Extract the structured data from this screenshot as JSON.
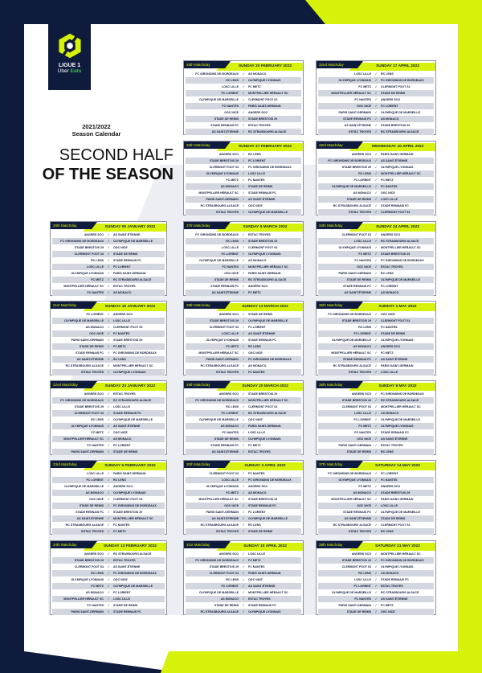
{
  "colors": {
    "navy": "#0f1b3d",
    "lime": "#d7f20a"
  },
  "logo": {
    "line1": "LIGUE 1",
    "line2a": "Uber",
    "line2b": "Eats"
  },
  "season": {
    "years": "2021/2022",
    "label": "Season Calendar"
  },
  "title": {
    "line1": "SECOND HALF",
    "line2": "OF THE SEASON"
  },
  "separator": "/",
  "matchdays": [
    {
      "label": "20th Matchday",
      "date": "SUNDAY 09 JANUARY 2022",
      "matches": [
        [
          "ANGERS SCO",
          "AS SAINT-ÉTIENNE"
        ],
        [
          "FC GIRONDINS DE BORDEAUX",
          "OLYMPIQUE DE MARSEILLE"
        ],
        [
          "STADE BRESTOIS 29",
          "OGC NICE"
        ],
        [
          "CLERMONT FOOT 63",
          "STADE DE REIMS"
        ],
        [
          "RC LENS",
          "STADE RENNAIS FC"
        ],
        [
          "LOSC LILLE",
          "FC LORIENT"
        ],
        [
          "OLYMPIQUE LYONNAIS",
          "PARIS SAINT-GERMAIN"
        ],
        [
          "FC METZ",
          "RC STRASBOURG ALSACE"
        ],
        [
          "MONTPELLIER HÉRAULT SC",
          "ESTAC TROYES"
        ],
        [
          "FC NANTES",
          "AS MONACO"
        ]
      ]
    },
    {
      "label": "21st Matchday",
      "date": "SUNDAY 16 JANUARY 2022",
      "matches": [
        [
          "FC LORIENT",
          "ANGERS SCO"
        ],
        [
          "OLYMPIQUE DE MARSEILLE",
          "LOSC LILLE"
        ],
        [
          "AS MONACO",
          "CLERMONT FOOT 63"
        ],
        [
          "OGC NICE",
          "FC NANTES"
        ],
        [
          "PARIS SAINT-GERMAIN",
          "STADE BRESTOIS 29"
        ],
        [
          "STADE DE REIMS",
          "FC METZ"
        ],
        [
          "STADE RENNAIS FC",
          "FC GIRONDINS DE BORDEAUX"
        ],
        [
          "AS SAINT-ÉTIENNE",
          "RC LENS"
        ],
        [
          "RC STRASBOURG ALSACE",
          "MONTPELLIER HÉRAULT SC"
        ],
        [
          "ESTAC TROYES",
          "OLYMPIQUE LYONNAIS"
        ]
      ]
    },
    {
      "label": "22nd Matchday",
      "date": "SUNDAY 23 JANUARY 2022",
      "matches": [
        [
          "ANGERS SCO",
          "ESTAC TROYES"
        ],
        [
          "FC GIRONDINS DE BORDEAUX",
          "RC STRASBOURG ALSACE"
        ],
        [
          "STADE BRESTOIS 29",
          "LOSC LILLE"
        ],
        [
          "CLERMONT FOOT 63",
          "STADE RENNAIS FC"
        ],
        [
          "RC LENS",
          "OLYMPIQUE DE MARSEILLE"
        ],
        [
          "OLYMPIQUE LYONNAIS",
          "AS SAINT-ÉTIENNE"
        ],
        [
          "FC METZ",
          "OGC NICE"
        ],
        [
          "MONTPELLIER HÉRAULT SC",
          "AS MONACO"
        ],
        [
          "FC NANTES",
          "FC LORIENT"
        ],
        [
          "PARIS SAINT-GERMAIN",
          "STADE DE REIMS"
        ]
      ]
    },
    {
      "label": "23rd Matchday",
      "date": "SUNDAY 6 FEBRUARY 2022",
      "matches": [
        [
          "LOSC LILLE",
          "PARIS SAINT-GERMAIN"
        ],
        [
          "FC LORIENT",
          "RC LENS"
        ],
        [
          "OLYMPIQUE DE MARSEILLE",
          "ANGERS SCO"
        ],
        [
          "AS MONACO",
          "OLYMPIQUE LYONNAIS"
        ],
        [
          "OGC NICE",
          "CLERMONT FOOT 63"
        ],
        [
          "STADE DE REIMS",
          "FC GIRONDINS DE BORDEAUX"
        ],
        [
          "STADE RENNAIS FC",
          "STADE BRESTOIS 29"
        ],
        [
          "AS SAINT-ÉTIENNE",
          "MONTPELLIER HÉRAULT SC"
        ],
        [
          "RC STRASBOURG ALSACE",
          "FC NANTES"
        ],
        [
          "ESTAC TROYES",
          "FC METZ"
        ]
      ]
    },
    {
      "label": "24th Matchday",
      "date": "SUNDAY 13 FEBRUARY 2022",
      "matches": [
        [
          "ANGERS SCO",
          "RC STRASBOURG ALSACE"
        ],
        [
          "STADE BRESTOIS 29",
          "ESTAC TROYES"
        ],
        [
          "CLERMONT FOOT 63",
          "AS SAINT-ÉTIENNE"
        ],
        [
          "RC LENS",
          "FC GIRONDINS DE BORDEAUX"
        ],
        [
          "OLYMPIQUE LYONNAIS",
          "OGC NICE"
        ],
        [
          "FC METZ",
          "OLYMPIQUE DE MARSEILLE"
        ],
        [
          "AS MONACO",
          "FC LORIENT"
        ],
        [
          "MONTPELLIER HÉRAULT SC",
          "LOSC LILLE"
        ],
        [
          "FC NANTES",
          "STADE DE REIMS"
        ],
        [
          "PARIS SAINT-GERMAIN",
          "STADE RENNAIS FC"
        ]
      ]
    },
    {
      "label": "25th Matchday",
      "date": "SUNDAY 20 FEBRUARY 2022",
      "matches": [
        [
          "FC GIRONDINS DE BORDEAUX",
          "AS MONACO"
        ],
        [
          "RC LENS",
          "OLYMPIQUE LYONNAIS"
        ],
        [
          "LOSC LILLE",
          "FC METZ"
        ],
        [
          "FC LORIENT",
          "MONTPELLIER HÉRAULT SC"
        ],
        [
          "OLYMPIQUE DE MARSEILLE",
          "CLERMONT FOOT 63"
        ],
        [
          "FC NANTES",
          "PARIS SAINT-GERMAIN"
        ],
        [
          "OGC NICE",
          "ANGERS SCO"
        ],
        [
          "STADE DE REIMS",
          "STADE BRESTOIS 29"
        ],
        [
          "STADE RENNAIS FC",
          "ESTAC TROYES"
        ],
        [
          "AS SAINT-ÉTIENNE",
          "RC STRASBOURG ALSACE"
        ]
      ]
    },
    {
      "label": "26th Matchday",
      "date": "SUNDAY 27 FEBRUARY 2022",
      "matches": [
        [
          "ANGERS SCO",
          "RC LENS"
        ],
        [
          "STADE BRESTOIS 29",
          "FC LORIENT"
        ],
        [
          "CLERMONT FOOT 63",
          "FC GIRONDINS DE BORDEAUX"
        ],
        [
          "OLYMPIQUE LYONNAIS",
          "LOSC LILLE"
        ],
        [
          "FC METZ",
          "FC NANTES"
        ],
        [
          "AS MONACO",
          "STADE DE REIMS"
        ],
        [
          "MONTPELLIER HÉRAULT SC",
          "STADE RENNAIS FC"
        ],
        [
          "PARIS SAINT-GERMAIN",
          "AS SAINT-ÉTIENNE"
        ],
        [
          "RC STRASBOURG ALSACE",
          "OGC NICE"
        ],
        [
          "ESTAC TROYES",
          "OLYMPIQUE DE MARSEILLE"
        ]
      ]
    },
    {
      "label": "27th Matchday",
      "date": "SUNDAY 6 MARCH 2022",
      "matches": [
        [
          "FC GIRONDINS DE BORDEAUX",
          "ESTAC TROYES"
        ],
        [
          "RC LENS",
          "STADE BRESTOIS 29"
        ],
        [
          "LOSC LILLE",
          "CLERMONT FOOT 63"
        ],
        [
          "FC LORIENT",
          "OLYMPIQUE LYONNAIS"
        ],
        [
          "OLYMPIQUE DE MARSEILLE",
          "AS MONACO"
        ],
        [
          "FC NANTES",
          "MONTPELLIER HÉRAULT SC"
        ],
        [
          "OGC NICE",
          "PARIS SAINT-GERMAIN"
        ],
        [
          "STADE DE REIMS",
          "RC STRASBOURG ALSACE"
        ],
        [
          "STADE RENNAIS FC",
          "ANGERS SCO"
        ],
        [
          "AS SAINT-ÉTIENNE",
          "FC METZ"
        ]
      ]
    },
    {
      "label": "28th Matchday",
      "date": "SUNDAY 13 MARCH 2022",
      "matches": [
        [
          "ANGERS SCO",
          "STADE DE REIMS"
        ],
        [
          "STADE BRESTOIS 29",
          "OLYMPIQUE DE MARSEILLE"
        ],
        [
          "CLERMONT FOOT 63",
          "FC LORIENT"
        ],
        [
          "LOSC LILLE",
          "AS SAINT-ÉTIENNE"
        ],
        [
          "OLYMPIQUE LYONNAIS",
          "STADE RENNAIS FC"
        ],
        [
          "FC METZ",
          "RC LENS"
        ],
        [
          "MONTPELLIER HÉRAULT SC",
          "OGC NICE"
        ],
        [
          "PARIS SAINT-GERMAIN",
          "FC GIRONDINS DE BORDEAUX"
        ],
        [
          "RC STRASBOURG ALSACE",
          "AS MONACO"
        ],
        [
          "ESTAC TROYES",
          "FC NANTES"
        ]
      ]
    },
    {
      "label": "29th Matchday",
      "date": "SUNDAY 20 MARCH 2022",
      "matches": [
        [
          "ANGERS SCO",
          "STADE BRESTOIS 29"
        ],
        [
          "FC GIRONDINS DE BORDEAUX",
          "MONTPELLIER HÉRAULT SC"
        ],
        [
          "RC LENS",
          "CLERMONT FOOT 63"
        ],
        [
          "FC LORIENT",
          "RC STRASBOURG ALSACE"
        ],
        [
          "OLYMPIQUE DE MARSEILLE",
          "OGC NICE"
        ],
        [
          "AS MONACO",
          "PARIS SAINT-GERMAIN"
        ],
        [
          "FC NANTES",
          "LOSC LILLE"
        ],
        [
          "STADE DE REIMS",
          "OLYMPIQUE LYONNAIS"
        ],
        [
          "STADE RENNAIS FC",
          "FC METZ"
        ],
        [
          "AS SAINT-ÉTIENNE",
          "ESTAC TROYES"
        ]
      ]
    },
    {
      "label": "30th Matchday",
      "date": "SUNDAY 3 APRIL 2022",
      "matches": [
        [
          "CLERMONT FOOT 63",
          "FC NANTES"
        ],
        [
          "LOSC LILLE",
          "FC GIRONDINS DE BORDEAUX"
        ],
        [
          "OLYMPIQUE LYONNAIS",
          "ANGERS SCO"
        ],
        [
          "FC METZ",
          "AS MONACO"
        ],
        [
          "MONTPELLIER HÉRAULT SC",
          "STADE BRESTOIS 29"
        ],
        [
          "OGC NICE",
          "STADE RENNAIS FC"
        ],
        [
          "PARIS SAINT-GERMAIN",
          "FC LORIENT"
        ],
        [
          "AS SAINT-ÉTIENNE",
          "OLYMPIQUE DE MARSEILLE"
        ],
        [
          "RC STRASBOURG ALSACE",
          "RC LENS"
        ],
        [
          "ESTAC TROYES",
          "STADE DE REIMS"
        ]
      ]
    },
    {
      "label": "31st Matchday",
      "date": "SUNDAY 10 APRIL 2022",
      "matches": [
        [
          "ANGERS SCO",
          "LOSC LILLE"
        ],
        [
          "FC GIRONDINS DE BORDEAUX",
          "FC METZ"
        ],
        [
          "STADE BRESTOIS 29",
          "FC NANTES"
        ],
        [
          "CLERMONT FOOT 63",
          "PARIS SAINT-GERMAIN"
        ],
        [
          "RC LENS",
          "OGC NICE"
        ],
        [
          "FC LORIENT",
          "AS SAINT-ÉTIENNE"
        ],
        [
          "OLYMPIQUE DE MARSEILLE",
          "MONTPELLIER HÉRAULT SC"
        ],
        [
          "AS MONACO",
          "ESTAC TROYES"
        ],
        [
          "STADE DE REIMS",
          "STADE RENNAIS FC"
        ],
        [
          "RC STRASBOURG ALSACE",
          "OLYMPIQUE LYONNAIS"
        ]
      ]
    },
    {
      "label": "32nd Matchday",
      "date": "SUNDAY 17 APRIL 2022",
      "matches": [
        [
          "LOSC LILLE",
          "RC LENS"
        ],
        [
          "OLYMPIQUE LYONNAIS",
          "FC GIRONDINS DE BORDEAUX"
        ],
        [
          "FC METZ",
          "CLERMONT FOOT 63"
        ],
        [
          "MONTPELLIER HÉRAULT SC",
          "STADE DE REIMS"
        ],
        [
          "FC NANTES",
          "ANGERS SCO"
        ],
        [
          "OGC NICE",
          "FC LORIENT"
        ],
        [
          "PARIS SAINT-GERMAIN",
          "OLYMPIQUE DE MARSEILLE"
        ],
        [
          "STADE RENNAIS FC",
          "AS MONACO"
        ],
        [
          "AS SAINT-ÉTIENNE",
          "STADE BRESTOIS 29"
        ],
        [
          "ESTAC TROYES",
          "RC STRASBOURG ALSACE"
        ]
      ]
    },
    {
      "label": "33rd Matchday",
      "date": "WEDNESDAY 20 APRIL 2022",
      "matches": [
        [
          "ANGERS SCO",
          "PARIS SAINT-GERMAIN"
        ],
        [
          "FC GIRONDINS DE BORDEAUX",
          "AS SAINT-ÉTIENNE"
        ],
        [
          "STADE BRESTOIS 29",
          "OLYMPIQUE LYONNAIS"
        ],
        [
          "RC LENS",
          "MONTPELLIER HÉRAULT SC"
        ],
        [
          "FC LORIENT",
          "FC METZ"
        ],
        [
          "OLYMPIQUE DE MARSEILLE",
          "FC NANTES"
        ],
        [
          "AS MONACO",
          "OGC NICE"
        ],
        [
          "STADE DE REIMS",
          "LOSC LILLE"
        ],
        [
          "RC STRASBOURG ALSACE",
          "STADE RENNAIS FC"
        ],
        [
          "ESTAC TROYES",
          "CLERMONT FOOT 63"
        ]
      ]
    },
    {
      "label": "34th Matchday",
      "date": "SUNDAY 24 APRIL 2022",
      "matches": [
        [
          "CLERMONT FOOT 63",
          "ANGERS SCO"
        ],
        [
          "LOSC LILLE",
          "RC STRASBOURG ALSACE"
        ],
        [
          "OLYMPIQUE LYONNAIS",
          "MONTPELLIER HÉRAULT SC"
        ],
        [
          "FC METZ",
          "STADE BRESTOIS 29"
        ],
        [
          "FC NANTES",
          "FC GIRONDINS DE BORDEAUX"
        ],
        [
          "OGC NICE",
          "ESTAC TROYES"
        ],
        [
          "PARIS SAINT-GERMAIN",
          "RC LENS"
        ],
        [
          "STADE DE REIMS",
          "OLYMPIQUE DE MARSEILLE"
        ],
        [
          "STADE RENNAIS FC",
          "FC LORIENT"
        ],
        [
          "AS SAINT-ÉTIENNE",
          "AS MONACO"
        ]
      ]
    },
    {
      "label": "35th Matchday",
      "date": "SUNDAY 1 MAY 2022",
      "matches": [
        [
          "FC GIRONDINS DE BORDEAUX",
          "OGC NICE"
        ],
        [
          "STADE BRESTOIS 29",
          "CLERMONT FOOT 63"
        ],
        [
          "RC LENS",
          "FC NANTES"
        ],
        [
          "FC LORIENT",
          "STADE DE REIMS"
        ],
        [
          "OLYMPIQUE DE MARSEILLE",
          "OLYMPIQUE LYONNAIS"
        ],
        [
          "AS MONACO",
          "ANGERS SCO"
        ],
        [
          "MONTPELLIER HÉRAULT SC",
          "FC METZ"
        ],
        [
          "STADE RENNAIS FC",
          "AS SAINT-ÉTIENNE"
        ],
        [
          "RC STRASBOURG ALSACE",
          "PARIS SAINT-GERMAIN"
        ],
        [
          "ESTAC TROYES",
          "LOSC LILLE"
        ]
      ]
    },
    {
      "label": "36th Matchday",
      "date": "SUNDAY 8 MAY 2022",
      "matches": [
        [
          "ANGERS SCO",
          "FC GIRONDINS DE BORDEAUX"
        ],
        [
          "STADE BRESTOIS 29",
          "RC STRASBOURG ALSACE"
        ],
        [
          "CLERMONT FOOT 63",
          "MONTPELLIER HÉRAULT SC"
        ],
        [
          "LOSC LILLE",
          "AS MONACO"
        ],
        [
          "FC LORIENT",
          "OLYMPIQUE DE MARSEILLE"
        ],
        [
          "FC METZ",
          "OLYMPIQUE LYONNAIS"
        ],
        [
          "FC NANTES",
          "STADE RENNAIS FC"
        ],
        [
          "OGC NICE",
          "AS SAINT-ÉTIENNE"
        ],
        [
          "PARIS SAINT-GERMAIN",
          "ESTAC TROYES"
        ],
        [
          "STADE DE REIMS",
          "RC LENS"
        ]
      ]
    },
    {
      "label": "37th Matchday",
      "date": "SATURDAY 14 MAY 2022",
      "matches": [
        [
          "FC GIRONDINS DE BORDEAUX",
          "FC LORIENT"
        ],
        [
          "OLYMPIQUE LYONNAIS",
          "FC NANTES"
        ],
        [
          "FC METZ",
          "ANGERS SCO"
        ],
        [
          "AS MONACO",
          "STADE BRESTOIS 29"
        ],
        [
          "MONTPELLIER HÉRAULT SC",
          "PARIS SAINT-GERMAIN"
        ],
        [
          "OGC NICE",
          "LOSC LILLE"
        ],
        [
          "STADE RENNAIS FC",
          "OLYMPIQUE DE MARSEILLE"
        ],
        [
          "AS SAINT-ÉTIENNE",
          "STADE DE REIMS"
        ],
        [
          "RC STRASBOURG ALSACE",
          "CLERMONT FOOT 63"
        ],
        [
          "ESTAC TROYES",
          "RC LENS"
        ]
      ]
    },
    {
      "label": "38th Matchday",
      "date": "SATURDAY 21 MAY 2022",
      "matches": [
        [
          "ANGERS SCO",
          "MONTPELLIER HÉRAULT SC"
        ],
        [
          "STADE BRESTOIS 29",
          "FC GIRONDINS DE BORDEAUX"
        ],
        [
          "CLERMONT FOOT 63",
          "OLYMPIQUE LYONNAIS"
        ],
        [
          "RC LENS",
          "AS MONACO"
        ],
        [
          "LOSC LILLE",
          "STADE RENNAIS FC"
        ],
        [
          "FC LORIENT",
          "ESTAC TROYES"
        ],
        [
          "OLYMPIQUE DE MARSEILLE",
          "RC STRASBOURG ALSACE"
        ],
        [
          "FC NANTES",
          "AS SAINT-ÉTIENNE"
        ],
        [
          "PARIS SAINT-GERMAIN",
          "FC METZ"
        ],
        [
          "STADE DE REIMS",
          "OGC NICE"
        ]
      ]
    }
  ]
}
